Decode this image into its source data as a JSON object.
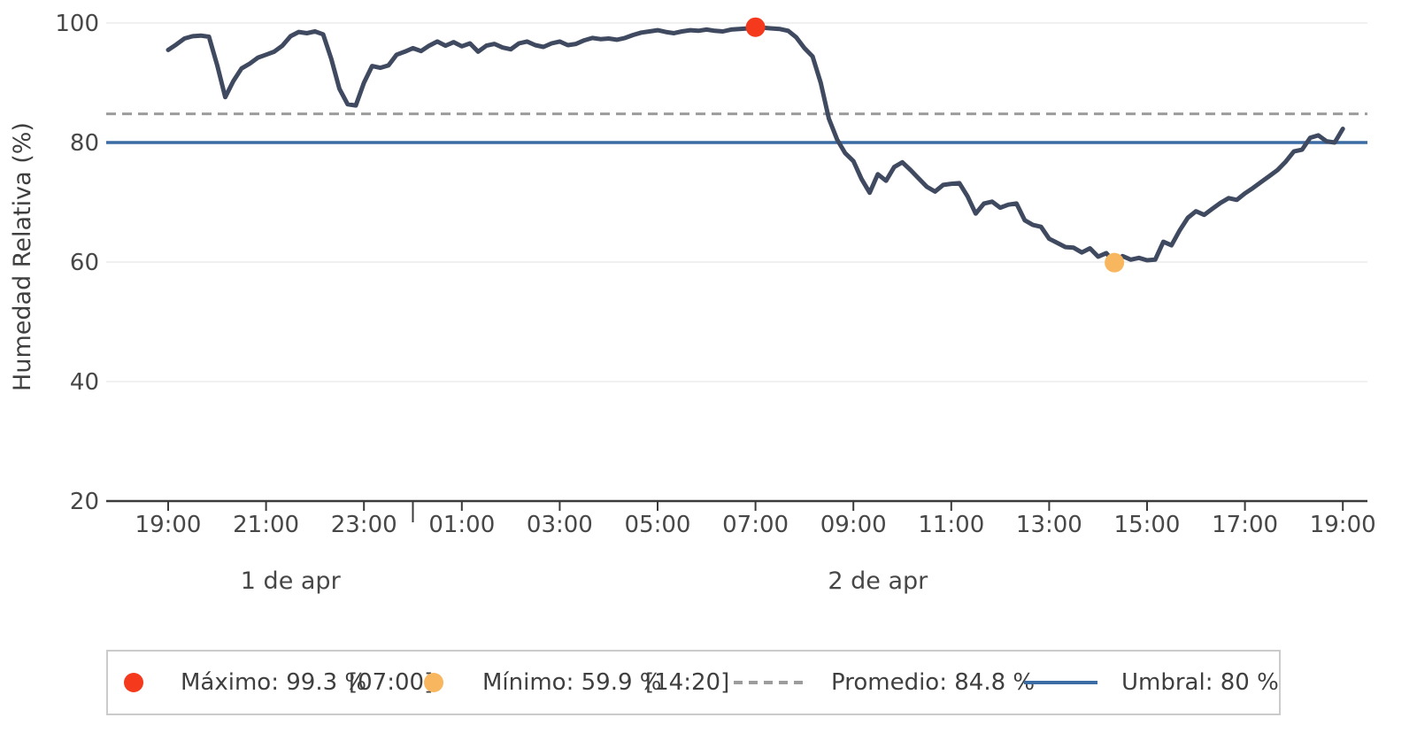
{
  "chart_data": {
    "type": "line",
    "title": "",
    "ylabel": "Humedad Relativa (%)",
    "grid": "horizontal-only",
    "y_axis": {
      "ticks": [
        100,
        80,
        60,
        40,
        20
      ],
      "gridline_values": [
        100,
        60,
        40
      ],
      "ylim": [
        20,
        101
      ]
    },
    "x_axis": {
      "ticks": [
        {
          "hour": 0,
          "label": "19:00"
        },
        {
          "hour": 2,
          "label": "21:00"
        },
        {
          "hour": 4,
          "label": "23:00"
        },
        {
          "hour": 6,
          "label": "01:00"
        },
        {
          "hour": 8,
          "label": "03:00"
        },
        {
          "hour": 10,
          "label": "05:00"
        },
        {
          "hour": 12,
          "label": "07:00"
        },
        {
          "hour": 14,
          "label": "09:00"
        },
        {
          "hour": 16,
          "label": "11:00"
        },
        {
          "hour": 18,
          "label": "13:00"
        },
        {
          "hour": 20,
          "label": "15:00"
        },
        {
          "hour": 22,
          "label": "17:00"
        },
        {
          "hour": 24,
          "label": "19:00"
        }
      ],
      "day_separator_hours": [
        5
      ],
      "day_labels": [
        {
          "label": "1 de apr",
          "hour_center": 2.5
        },
        {
          "label": "2 de apr",
          "hour_center": 14.5
        }
      ],
      "range_hours": 24
    },
    "series": [
      {
        "name": "Humedad Relativa",
        "color": "#3f4a61",
        "start_label": "19:00",
        "interval_minutes": 10,
        "values": [
          95.5,
          96.4,
          97.4,
          97.8,
          97.9,
          97.7,
          93.0,
          87.6,
          90.3,
          92.4,
          93.2,
          94.2,
          94.7,
          95.2,
          96.2,
          97.8,
          98.5,
          98.3,
          98.6,
          98.1,
          94.0,
          89.0,
          86.4,
          86.2,
          90.0,
          92.8,
          92.5,
          92.9,
          94.7,
          95.2,
          95.8,
          95.3,
          96.2,
          96.9,
          96.2,
          96.8,
          96.1,
          96.6,
          95.2,
          96.2,
          96.5,
          95.9,
          95.6,
          96.6,
          96.9,
          96.3,
          96.0,
          96.6,
          96.9,
          96.3,
          96.5,
          97.1,
          97.5,
          97.3,
          97.4,
          97.2,
          97.5,
          98.0,
          98.4,
          98.6,
          98.8,
          98.5,
          98.3,
          98.6,
          98.8,
          98.7,
          98.9,
          98.7,
          98.6,
          98.9,
          99.0,
          99.1,
          99.3,
          99.2,
          99.1,
          99.0,
          98.7,
          97.6,
          95.8,
          94.4,
          90.0,
          84.0,
          80.5,
          78.2,
          76.9,
          73.9,
          71.6,
          74.7,
          73.6,
          75.9,
          76.7,
          75.4,
          74.0,
          72.6,
          71.8,
          72.9,
          73.1,
          73.2,
          71.0,
          68.1,
          69.8,
          70.1,
          69.1,
          69.6,
          69.8,
          67.0,
          66.2,
          65.9,
          63.9,
          63.2,
          62.5,
          62.4,
          61.6,
          62.3,
          60.9,
          61.5,
          59.9,
          61.0,
          60.4,
          60.7,
          60.3,
          60.4,
          63.4,
          62.8,
          65.3,
          67.4,
          68.5,
          67.9,
          68.9,
          69.9,
          70.7,
          70.4,
          71.5,
          72.4,
          73.4,
          74.4,
          75.4,
          76.8,
          78.5,
          78.8,
          80.8,
          81.2,
          80.2,
          80.0,
          82.3
        ]
      }
    ],
    "annotations": {
      "max": {
        "value": 99.3,
        "hour_offset": 12,
        "time": "07:00",
        "color": "#f5391d"
      },
      "min": {
        "value": 59.9,
        "hour_offset": 19.333,
        "time": "14:20",
        "color": "#f8b65e"
      },
      "average": {
        "value": 84.8,
        "color": "#9c9c9c",
        "style": "dashed"
      },
      "threshold": {
        "value": 80,
        "color": "#3b6ca3",
        "style": "solid"
      }
    },
    "legend_position": "bottom"
  },
  "colors": {
    "grid": "#ececec",
    "axis": "#3b3b3b",
    "tick_text": "#474747"
  },
  "legend": {
    "max": {
      "label": "Máximo: 99.3 %",
      "time": "[07:00]"
    },
    "min": {
      "label": "Mínimo: 59.9 %",
      "time": "[14:20]"
    },
    "average": {
      "label": "Promedio: 84.8 %"
    },
    "threshold": {
      "label": "Umbral: 80 %"
    }
  }
}
